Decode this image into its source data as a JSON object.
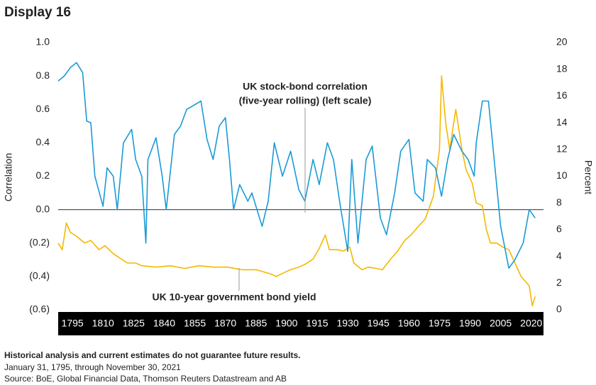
{
  "chart_data": {
    "type": "line",
    "title": "Display 16",
    "y_label": "Correlation",
    "y2_label": "Percent",
    "annotations": [
      "UK stock-bond correlation",
      "(five-year rolling) (left scale)",
      "UK 10-year government bond yield"
    ],
    "footnotes": [
      "Historical analysis and current estimates do not guarantee future results.",
      "January 31, 1795, through November 30, 2021",
      "Source: BoE, Global Financial Data, Thomson Reuters Datastream and AB"
    ],
    "xlim": [
      1788,
      2026
    ],
    "xticks": [
      1795,
      1810,
      1825,
      1840,
      1855,
      1870,
      1885,
      1900,
      1915,
      1930,
      1945,
      1960,
      1975,
      1990,
      2005,
      2020
    ],
    "ylim": [
      -0.6,
      1.0
    ],
    "yticks": [
      {
        "value": 1.0,
        "label": "1.0"
      },
      {
        "value": 0.8,
        "label": "0.8"
      },
      {
        "value": 0.6,
        "label": "0.6"
      },
      {
        "value": 0.4,
        "label": "0.4"
      },
      {
        "value": 0.2,
        "label": "0.2"
      },
      {
        "value": 0,
        "label": "0.0"
      },
      {
        "value": -0.2,
        "label": "(0.2)"
      },
      {
        "value": -0.4,
        "label": "(0.4)"
      },
      {
        "value": -0.6,
        "label": "(0.6)"
      }
    ],
    "y2lim": [
      0,
      20
    ],
    "y2ticks": [
      0,
      2,
      4,
      6,
      8,
      10,
      12,
      14,
      16,
      18,
      20
    ],
    "series": [
      {
        "name": "UK stock-bond correlation (five-year rolling)",
        "color": "#1a9ad6",
        "axis": "y",
        "x": [
          1788,
          1791,
          1794,
          1797,
          1800,
          1802,
          1804,
          1806,
          1810,
          1812,
          1815,
          1817,
          1820,
          1824,
          1826,
          1829,
          1831,
          1832,
          1836,
          1839,
          1841,
          1845,
          1848,
          1851,
          1858,
          1861,
          1864,
          1867,
          1870,
          1872,
          1874,
          1877,
          1881,
          1883,
          1888,
          1891,
          1894,
          1898,
          1902,
          1906,
          1909,
          1913,
          1916,
          1920,
          1923,
          1926,
          1930,
          1932,
          1935,
          1939,
          1942,
          1946,
          1949,
          1953,
          1956,
          1960,
          1963,
          1967,
          1969,
          1973,
          1976,
          1979,
          1982,
          1986,
          1989,
          1992,
          1993,
          1996,
          1999,
          2001,
          2005,
          2009,
          2012,
          2016,
          2019,
          2021.9
        ],
        "values": [
          0.77,
          0.8,
          0.85,
          0.88,
          0.82,
          0.53,
          0.52,
          0.2,
          0.02,
          0.25,
          0.2,
          0.0,
          0.4,
          0.48,
          0.3,
          0.2,
          -0.2,
          0.3,
          0.43,
          0.2,
          0.0,
          0.45,
          0.5,
          0.6,
          0.65,
          0.42,
          0.3,
          0.5,
          0.55,
          0.3,
          0.0,
          0.15,
          0.05,
          0.1,
          -0.1,
          0.05,
          0.4,
          0.2,
          0.35,
          0.12,
          0.05,
          0.3,
          0.15,
          0.4,
          0.3,
          0.05,
          -0.25,
          0.3,
          -0.2,
          0.3,
          0.38,
          -0.05,
          -0.15,
          0.1,
          0.35,
          0.42,
          0.1,
          0.05,
          0.3,
          0.25,
          0.08,
          0.3,
          0.45,
          0.35,
          0.3,
          0.2,
          0.4,
          0.65,
          0.65,
          0.4,
          -0.1,
          -0.35,
          -0.3,
          -0.2,
          0.0,
          -0.05
        ]
      },
      {
        "name": "UK 10-year government bond yield",
        "color": "#f5b800",
        "axis": "y2",
        "x": [
          1788,
          1790,
          1792,
          1794,
          1797,
          1801,
          1804,
          1808,
          1811,
          1815,
          1819,
          1822,
          1826,
          1829,
          1836,
          1843,
          1850,
          1857,
          1864,
          1871,
          1878,
          1885,
          1892,
          1895,
          1899,
          1902,
          1906,
          1909,
          1913,
          1916,
          1919,
          1921,
          1925,
          1928,
          1931,
          1933,
          1937,
          1940,
          1944,
          1947,
          1951,
          1954,
          1958,
          1961,
          1965,
          1968,
          1972,
          1975,
          1976,
          1978,
          1980,
          1983,
          1986,
          1988,
          1991,
          1993,
          1996,
          1998,
          2000,
          2003,
          2006,
          2009,
          2012,
          2015,
          2019,
          2020.5,
          2021.9
        ],
        "values": [
          5.0,
          4.5,
          6.5,
          5.8,
          5.5,
          5.0,
          5.2,
          4.5,
          4.8,
          4.2,
          3.8,
          3.5,
          3.5,
          3.3,
          3.2,
          3.3,
          3.1,
          3.3,
          3.2,
          3.2,
          3.0,
          3.0,
          2.7,
          2.5,
          2.8,
          3.0,
          3.2,
          3.4,
          3.8,
          4.6,
          5.6,
          4.5,
          4.5,
          4.4,
          4.7,
          3.5,
          3.0,
          3.2,
          3.1,
          3.0,
          3.8,
          4.3,
          5.2,
          5.6,
          6.3,
          6.8,
          8.5,
          12,
          17.5,
          14,
          12,
          15,
          12,
          10.5,
          9.5,
          8,
          7.8,
          6,
          5,
          5,
          4.7,
          4.5,
          3.5,
          2.5,
          1.8,
          0.3,
          1.0
        ]
      }
    ]
  }
}
